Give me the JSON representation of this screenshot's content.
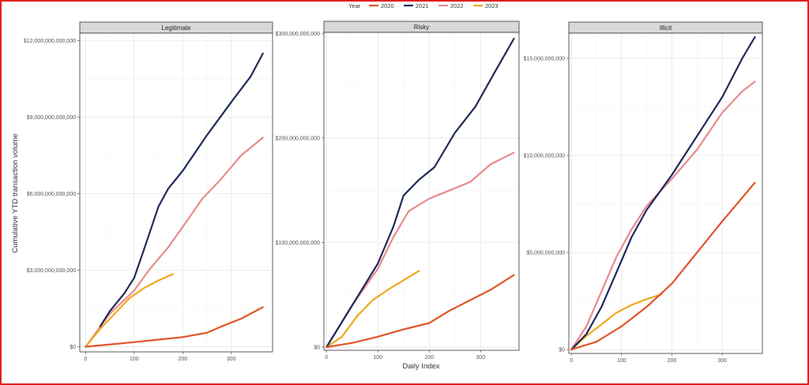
{
  "chart_data": {
    "type": "line",
    "xlabel": "Daily Index",
    "ylabel": "Cumulative YTD transaction volume",
    "legend": {
      "title": "Year",
      "placement": "top",
      "entries": [
        {
          "label": "2020",
          "color": "#e0552b"
        },
        {
          "label": "2021",
          "color": "#1f2a5c"
        },
        {
          "label": "2022",
          "color": "#e88b8b"
        },
        {
          "label": "2023",
          "color": "#f0a820"
        }
      ]
    },
    "grid": true,
    "x_ticks": [
      {
        "value": 0,
        "label": "0"
      },
      {
        "value": 100,
        "label": "100"
      },
      {
        "value": 200,
        "label": "200"
      },
      {
        "value": 300,
        "label": "300"
      }
    ],
    "panels": [
      {
        "title": "Legitimate",
        "xlim": [
          -12,
          385
        ],
        "ylim": [
          -200000000000,
          12300000000000
        ],
        "y_ticks": [
          {
            "value": 0,
            "label": "$0"
          },
          {
            "value": 3000000000000,
            "label": "$3,000,000,000,000"
          },
          {
            "value": 6000000000000,
            "label": "$6,000,000,000,000"
          },
          {
            "value": 9000000000000,
            "label": "$9,000,000,000,000"
          },
          {
            "value": 12000000000000,
            "label": "$12,000,000,000,000"
          }
        ],
        "series": [
          {
            "name": "2020",
            "x": [
              0,
              50,
              100,
              150,
              200,
              250,
              280,
              320,
              365
            ],
            "y": [
              0,
              90000000000,
              180000000000,
              280000000000,
              380000000000,
              550000000000,
              800000000000,
              1100000000000,
              1550000000000
            ]
          },
          {
            "name": "2021",
            "x": [
              30,
              50,
              80,
              100,
              120,
              150,
              170,
              200,
              250,
              300,
              340,
              365
            ],
            "y": [
              800000000000,
              1400000000000,
              2100000000000,
              2700000000000,
              3800000000000,
              5500000000000,
              6200000000000,
              6900000000000,
              8300000000000,
              9600000000000,
              10600000000000,
              11500000000000
            ]
          },
          {
            "name": "2022",
            "x": [
              0,
              50,
              100,
              130,
              170,
              200,
              240,
              280,
              320,
              365
            ],
            "y": [
              0,
              1300000000000,
              2200000000000,
              3000000000000,
              3900000000000,
              4700000000000,
              5800000000000,
              6600000000000,
              7500000000000,
              8200000000000
            ]
          },
          {
            "name": "2023",
            "x": [
              0,
              30,
              60,
              90,
              120,
              150,
              180
            ],
            "y": [
              0,
              700000000000,
              1300000000000,
              1900000000000,
              2300000000000,
              2600000000000,
              2850000000000
            ]
          }
        ]
      },
      {
        "title": "Risky",
        "xlim": [
          -5,
          375
        ],
        "ylim": [
          -3000000000,
          301000000000
        ],
        "y_ticks": [
          {
            "value": 0,
            "label": "$0"
          },
          {
            "value": 100000000000,
            "label": "$100,000,000,000"
          },
          {
            "value": 200000000000,
            "label": "$200,000,000,000"
          },
          {
            "value": 300000000000,
            "label": "$300,000,000,000"
          }
        ],
        "series": [
          {
            "name": "2020",
            "x": [
              0,
              50,
              100,
              150,
              200,
              240,
              280,
              320,
              365
            ],
            "y": [
              0,
              4000000000,
              10000000000,
              17000000000,
              23000000000,
              35000000000,
              45000000000,
              55000000000,
              69000000000
            ]
          },
          {
            "name": "2021",
            "x": [
              0,
              50,
              100,
              130,
              150,
              180,
              210,
              250,
              290,
              330,
              365
            ],
            "y": [
              0,
              40000000000,
              80000000000,
              115000000000,
              145000000000,
              160000000000,
              172000000000,
              205000000000,
              230000000000,
              265000000000,
              295000000000
            ]
          },
          {
            "name": "2022",
            "x": [
              0,
              50,
              100,
              130,
              160,
              200,
              240,
              280,
              320,
              365
            ],
            "y": [
              0,
              40000000000,
              75000000000,
              105000000000,
              130000000000,
              142000000000,
              150000000000,
              158000000000,
              175000000000,
              186000000000
            ]
          },
          {
            "name": "2023",
            "x": [
              0,
              30,
              60,
              90,
              120,
              150,
              180
            ],
            "y": [
              0,
              10000000000,
              30000000000,
              45000000000,
              55000000000,
              64000000000,
              73000000000
            ]
          }
        ]
      },
      {
        "title": "Illicit",
        "xlim": [
          -5,
          380
        ],
        "ylim": [
          -200000000,
          16300000000
        ],
        "y_ticks": [
          {
            "value": 0,
            "label": "$0"
          },
          {
            "value": 5000000000,
            "label": "$5,000,000,000"
          },
          {
            "value": 10000000000,
            "label": "$10,000,000,000"
          },
          {
            "value": 15000000000,
            "label": "$15,000,000,000"
          }
        ],
        "series": [
          {
            "name": "2020",
            "x": [
              0,
              50,
              100,
              150,
              200,
              250,
              300,
              365
            ],
            "y": [
              0,
              400000000,
              1200000000,
              2200000000,
              3400000000,
              5000000000,
              6600000000,
              8600000000
            ]
          },
          {
            "name": "2021",
            "x": [
              0,
              30,
              60,
              90,
              120,
              150,
              200,
              250,
              300,
              340,
              365
            ],
            "y": [
              0,
              800000000,
              2200000000,
              4000000000,
              5800000000,
              7200000000,
              9000000000,
              11000000000,
              13000000000,
              15000000000,
              16100000000
            ]
          },
          {
            "name": "2022",
            "x": [
              0,
              30,
              60,
              90,
              120,
              150,
              200,
              250,
              300,
              340,
              365
            ],
            "y": [
              0,
              1200000000,
              3000000000,
              4800000000,
              6200000000,
              7400000000,
              8800000000,
              10300000000,
              12200000000,
              13300000000,
              13800000000
            ]
          },
          {
            "name": "2023",
            "x": [
              0,
              30,
              60,
              90,
              120,
              150,
              180
            ],
            "y": [
              0,
              700000000,
              1300000000,
              1900000000,
              2300000000,
              2600000000,
              2850000000
            ]
          }
        ]
      }
    ]
  }
}
